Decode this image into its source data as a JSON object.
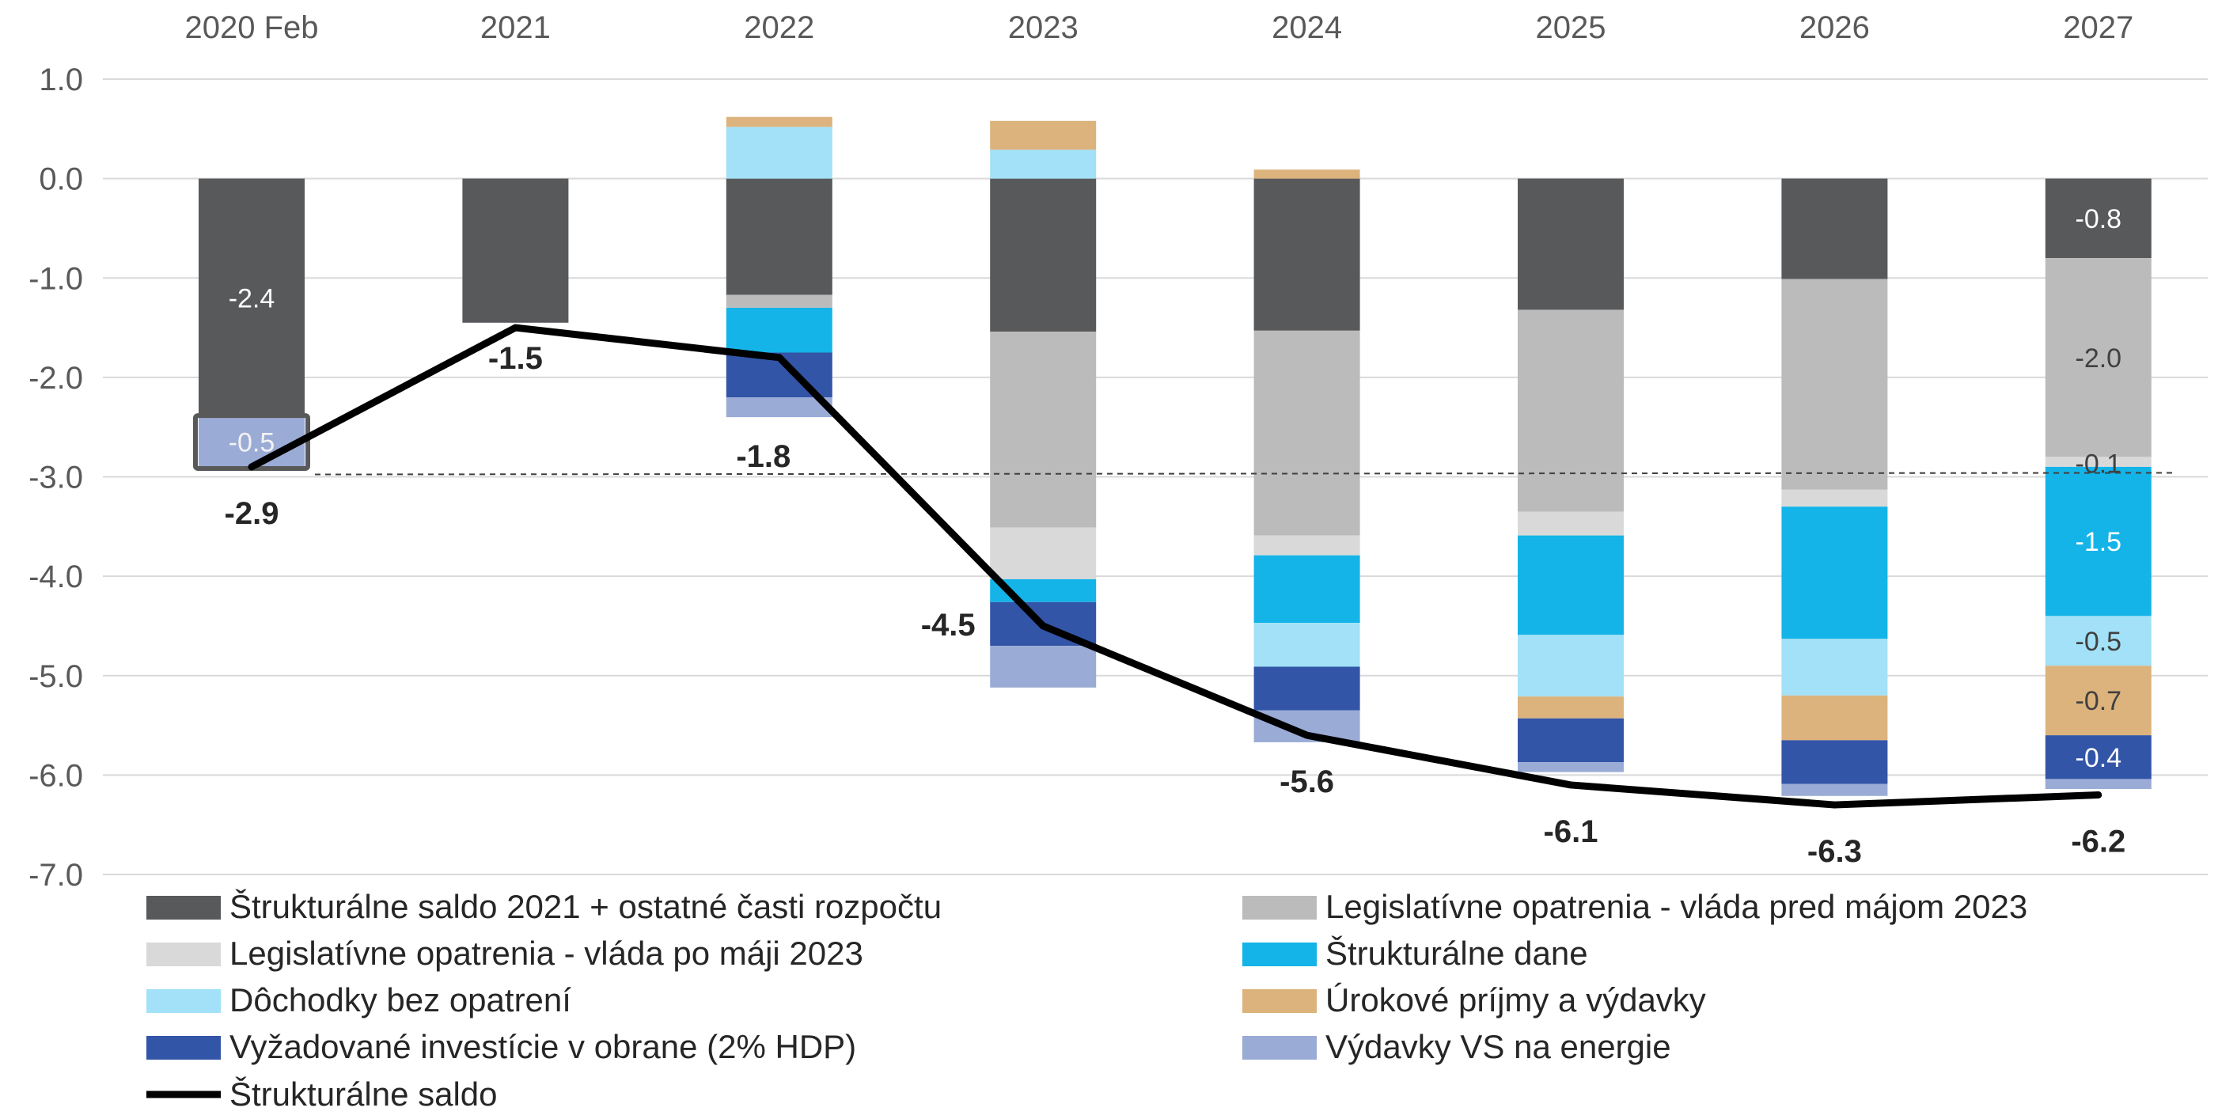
{
  "chart_data": {
    "type": "bar",
    "stacked": true,
    "categories": [
      "2020 Feb",
      "2021",
      "2022",
      "2023",
      "2024",
      "2025",
      "2026",
      "2027"
    ],
    "ylim": [
      -7.0,
      1.0
    ],
    "yticks": [
      1.0,
      0.0,
      -1.0,
      -2.0,
      -3.0,
      -4.0,
      -5.0,
      -6.0,
      -7.0
    ],
    "grid": true,
    "reference_line": -3.0,
    "legend_position": "bottom",
    "series": [
      {
        "name": "Štrukturálne saldo 2021 + ostatné časti rozpočtu",
        "color": "#58595b",
        "values": [
          -2.4,
          -1.45,
          -1.17,
          -1.54,
          -1.53,
          -1.32,
          -1.01,
          -0.8
        ]
      },
      {
        "name": "Legislatívne opatrenia - vláda pred májom 2023",
        "color": "#bbbbbb",
        "values": [
          0,
          0,
          -0.13,
          -1.97,
          -2.06,
          -2.03,
          -2.12,
          -2.0
        ]
      },
      {
        "name": "Legislatívne opatrenia - vláda po máji 2023",
        "color": "#d9d9d9",
        "values": [
          0,
          0,
          0,
          -0.52,
          -0.2,
          -0.24,
          -0.17,
          -0.1
        ]
      },
      {
        "name": "Štrukturálne dane",
        "color": "#14b4e8",
        "values": [
          0,
          0,
          -0.45,
          -0.23,
          -0.68,
          -1.0,
          -1.33,
          -1.5
        ]
      },
      {
        "name": "Dôchodky bez opatrení",
        "color": "#a2e1f7",
        "values": [
          0,
          0,
          0.52,
          0.29,
          -0.44,
          -0.62,
          -0.57,
          -0.5
        ]
      },
      {
        "name": "Úrokové príjmy a výdavky",
        "color": "#dcb37c",
        "values": [
          0,
          0,
          0.1,
          0.29,
          0.09,
          -0.22,
          -0.45,
          -0.7
        ]
      },
      {
        "name": "Vyžadované investície v obrane (2% HDP)",
        "color": "#3355a8",
        "values": [
          0,
          0,
          -0.45,
          -0.44,
          -0.44,
          -0.44,
          -0.44,
          -0.44
        ]
      },
      {
        "name": "Výdavky VS na energie",
        "color": "#9aabd6",
        "values": [
          -0.5,
          0,
          -0.2,
          -0.42,
          -0.32,
          -0.1,
          -0.12,
          -0.1
        ]
      }
    ],
    "segment_labels": [
      {
        "category": 0,
        "series": 0,
        "text": "-2.4"
      },
      {
        "category": 0,
        "series": 7,
        "text": "-0.5"
      },
      {
        "category": 7,
        "series": 0,
        "text": "-0.8"
      },
      {
        "category": 7,
        "series": 1,
        "text": "-2.0"
      },
      {
        "category": 7,
        "series": 2,
        "text": "-0.1"
      },
      {
        "category": 7,
        "series": 3,
        "text": "-1.5"
      },
      {
        "category": 7,
        "series": 4,
        "text": "-0.5"
      },
      {
        "category": 7,
        "series": 5,
        "text": "-0.7"
      },
      {
        "category": 7,
        "series": 6,
        "text": "-0.4"
      }
    ],
    "line": {
      "name": "Štrukturálne saldo",
      "color": "#000000",
      "values": [
        -2.9,
        -1.5,
        -1.8,
        -4.5,
        -5.6,
        -6.1,
        -6.3,
        -6.2
      ],
      "labels": [
        "-2.9",
        "-1.5",
        "-1.8",
        "-4.5",
        "-5.6",
        "-6.1",
        "-6.3",
        "-6.2"
      ]
    }
  }
}
